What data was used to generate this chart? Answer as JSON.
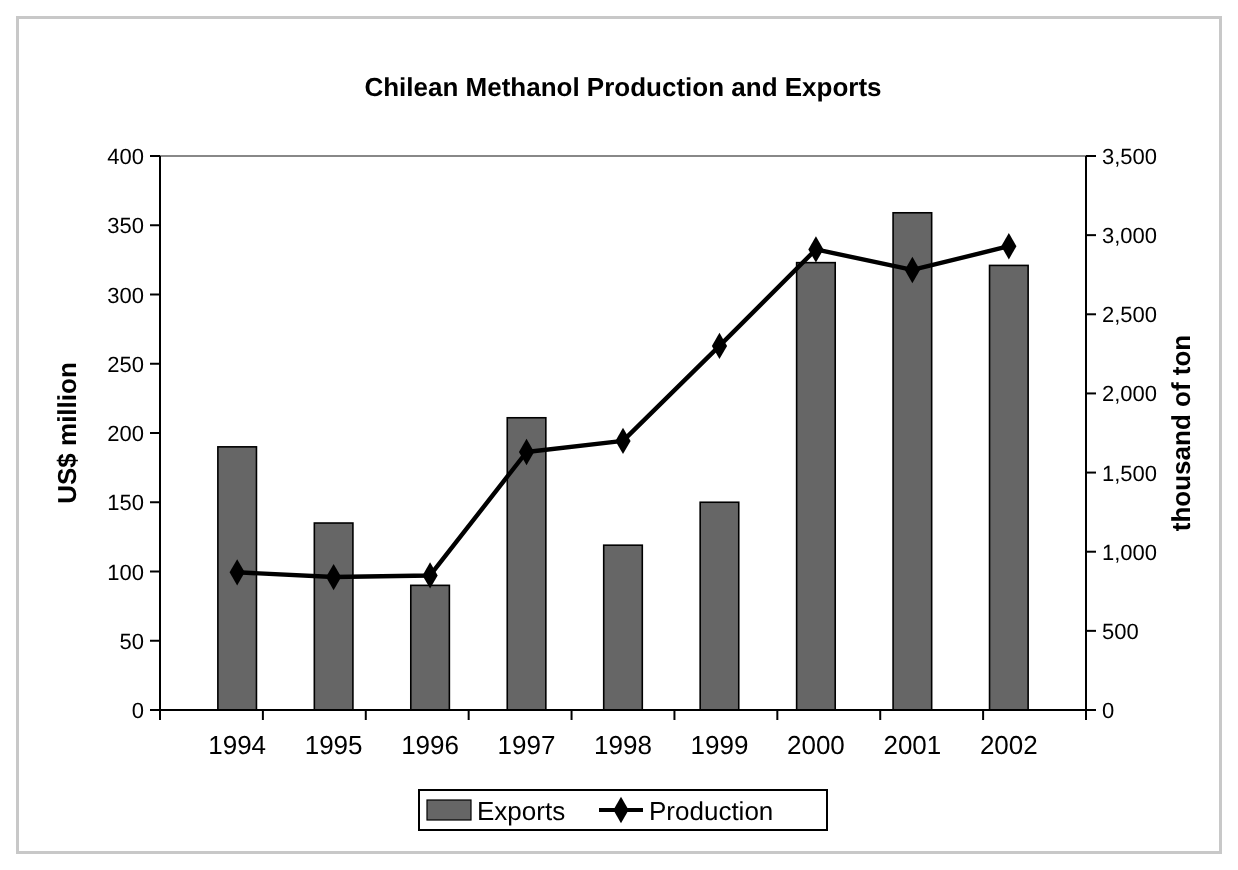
{
  "chart_data": {
    "type": "bar",
    "title": "Chilean Methanol Production and Exports",
    "ylabel": "US$ million",
    "y2label": "thousand of ton",
    "categories": [
      "1994",
      "1995",
      "1996",
      "1997",
      "1998",
      "1999",
      "2000",
      "2001",
      "2002"
    ],
    "series": [
      {
        "name": "Exports",
        "color": "#666666",
        "values": [
          190,
          135,
          90,
          211,
          119,
          150,
          323,
          359,
          321
        ]
      },
      {
        "name": "Production",
        "type": "line",
        "axis": "y2",
        "color": "#000000",
        "marker": "diamond",
        "values": [
          870,
          840,
          850,
          1630,
          1700,
          2300,
          2910,
          2780,
          2930
        ]
      }
    ],
    "ylim": [
      0,
      400
    ],
    "yticks": [
      0,
      50,
      100,
      150,
      200,
      250,
      300,
      350,
      400
    ],
    "y2lim": [
      0,
      3500
    ],
    "y2ticks": [
      0,
      {
        "value": 500,
        "label": "500"
      },
      {
        "value": 1000,
        "label": "1,000"
      },
      {
        "value": 1500,
        "label": "1,500"
      },
      {
        "value": 2000,
        "label": "2,000"
      },
      {
        "value": 2500,
        "label": "2,500"
      },
      {
        "value": 3000,
        "label": "3,000"
      },
      {
        "value": 3500,
        "label": "3,500"
      }
    ],
    "legend": "bottom"
  }
}
